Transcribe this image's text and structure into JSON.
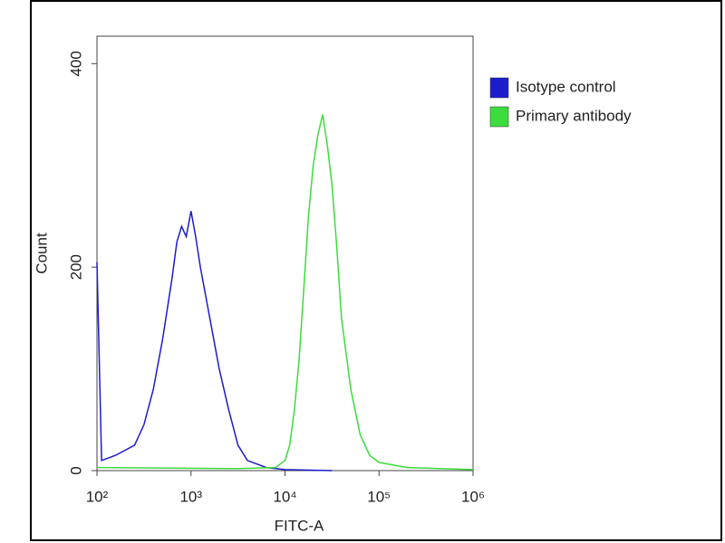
{
  "chart_data": {
    "type": "line",
    "xlabel": "FITC-A",
    "ylabel": "Count",
    "xscale": "log",
    "xlim": [
      100,
      1000000
    ],
    "ylim": [
      0,
      427
    ],
    "xticks": [
      {
        "value": 100,
        "label": "10²"
      },
      {
        "value": 1000,
        "label": "10³"
      },
      {
        "value": 10000,
        "label": "10⁴"
      },
      {
        "value": 100000,
        "label": "10⁵"
      },
      {
        "value": 1000000,
        "label": "10⁶"
      }
    ],
    "yticks": [
      0,
      200,
      400
    ],
    "legend": "upper right",
    "series": [
      {
        "name": "Isotype control",
        "color": "#1c1ccf",
        "x": [
          100,
          112,
          158,
          251,
          316,
          398,
          501,
          631,
          708,
          794,
          891,
          1000,
          1122,
          1259,
          1585,
          1995,
          2512,
          3162,
          3981,
          6310,
          10000,
          31623
        ],
        "values": [
          205,
          10,
          15,
          25,
          45,
          80,
          130,
          190,
          225,
          240,
          230,
          255,
          230,
          200,
          150,
          100,
          60,
          25,
          10,
          3,
          1,
          0
        ]
      },
      {
        "name": "Primary antibody",
        "color": "#3ddc3d",
        "x": [
          100,
          3162,
          7943,
          10000,
          11220,
          12589,
          14125,
          15849,
          17783,
          19953,
          22387,
          25119,
          28184,
          31623,
          35481,
          39811,
          50119,
          63096,
          79433,
          100000,
          199526,
          1000000
        ],
        "values": [
          3,
          2,
          3,
          10,
          25,
          60,
          110,
          180,
          250,
          300,
          330,
          350,
          320,
          280,
          220,
          150,
          80,
          35,
          15,
          8,
          3,
          1
        ]
      }
    ]
  }
}
